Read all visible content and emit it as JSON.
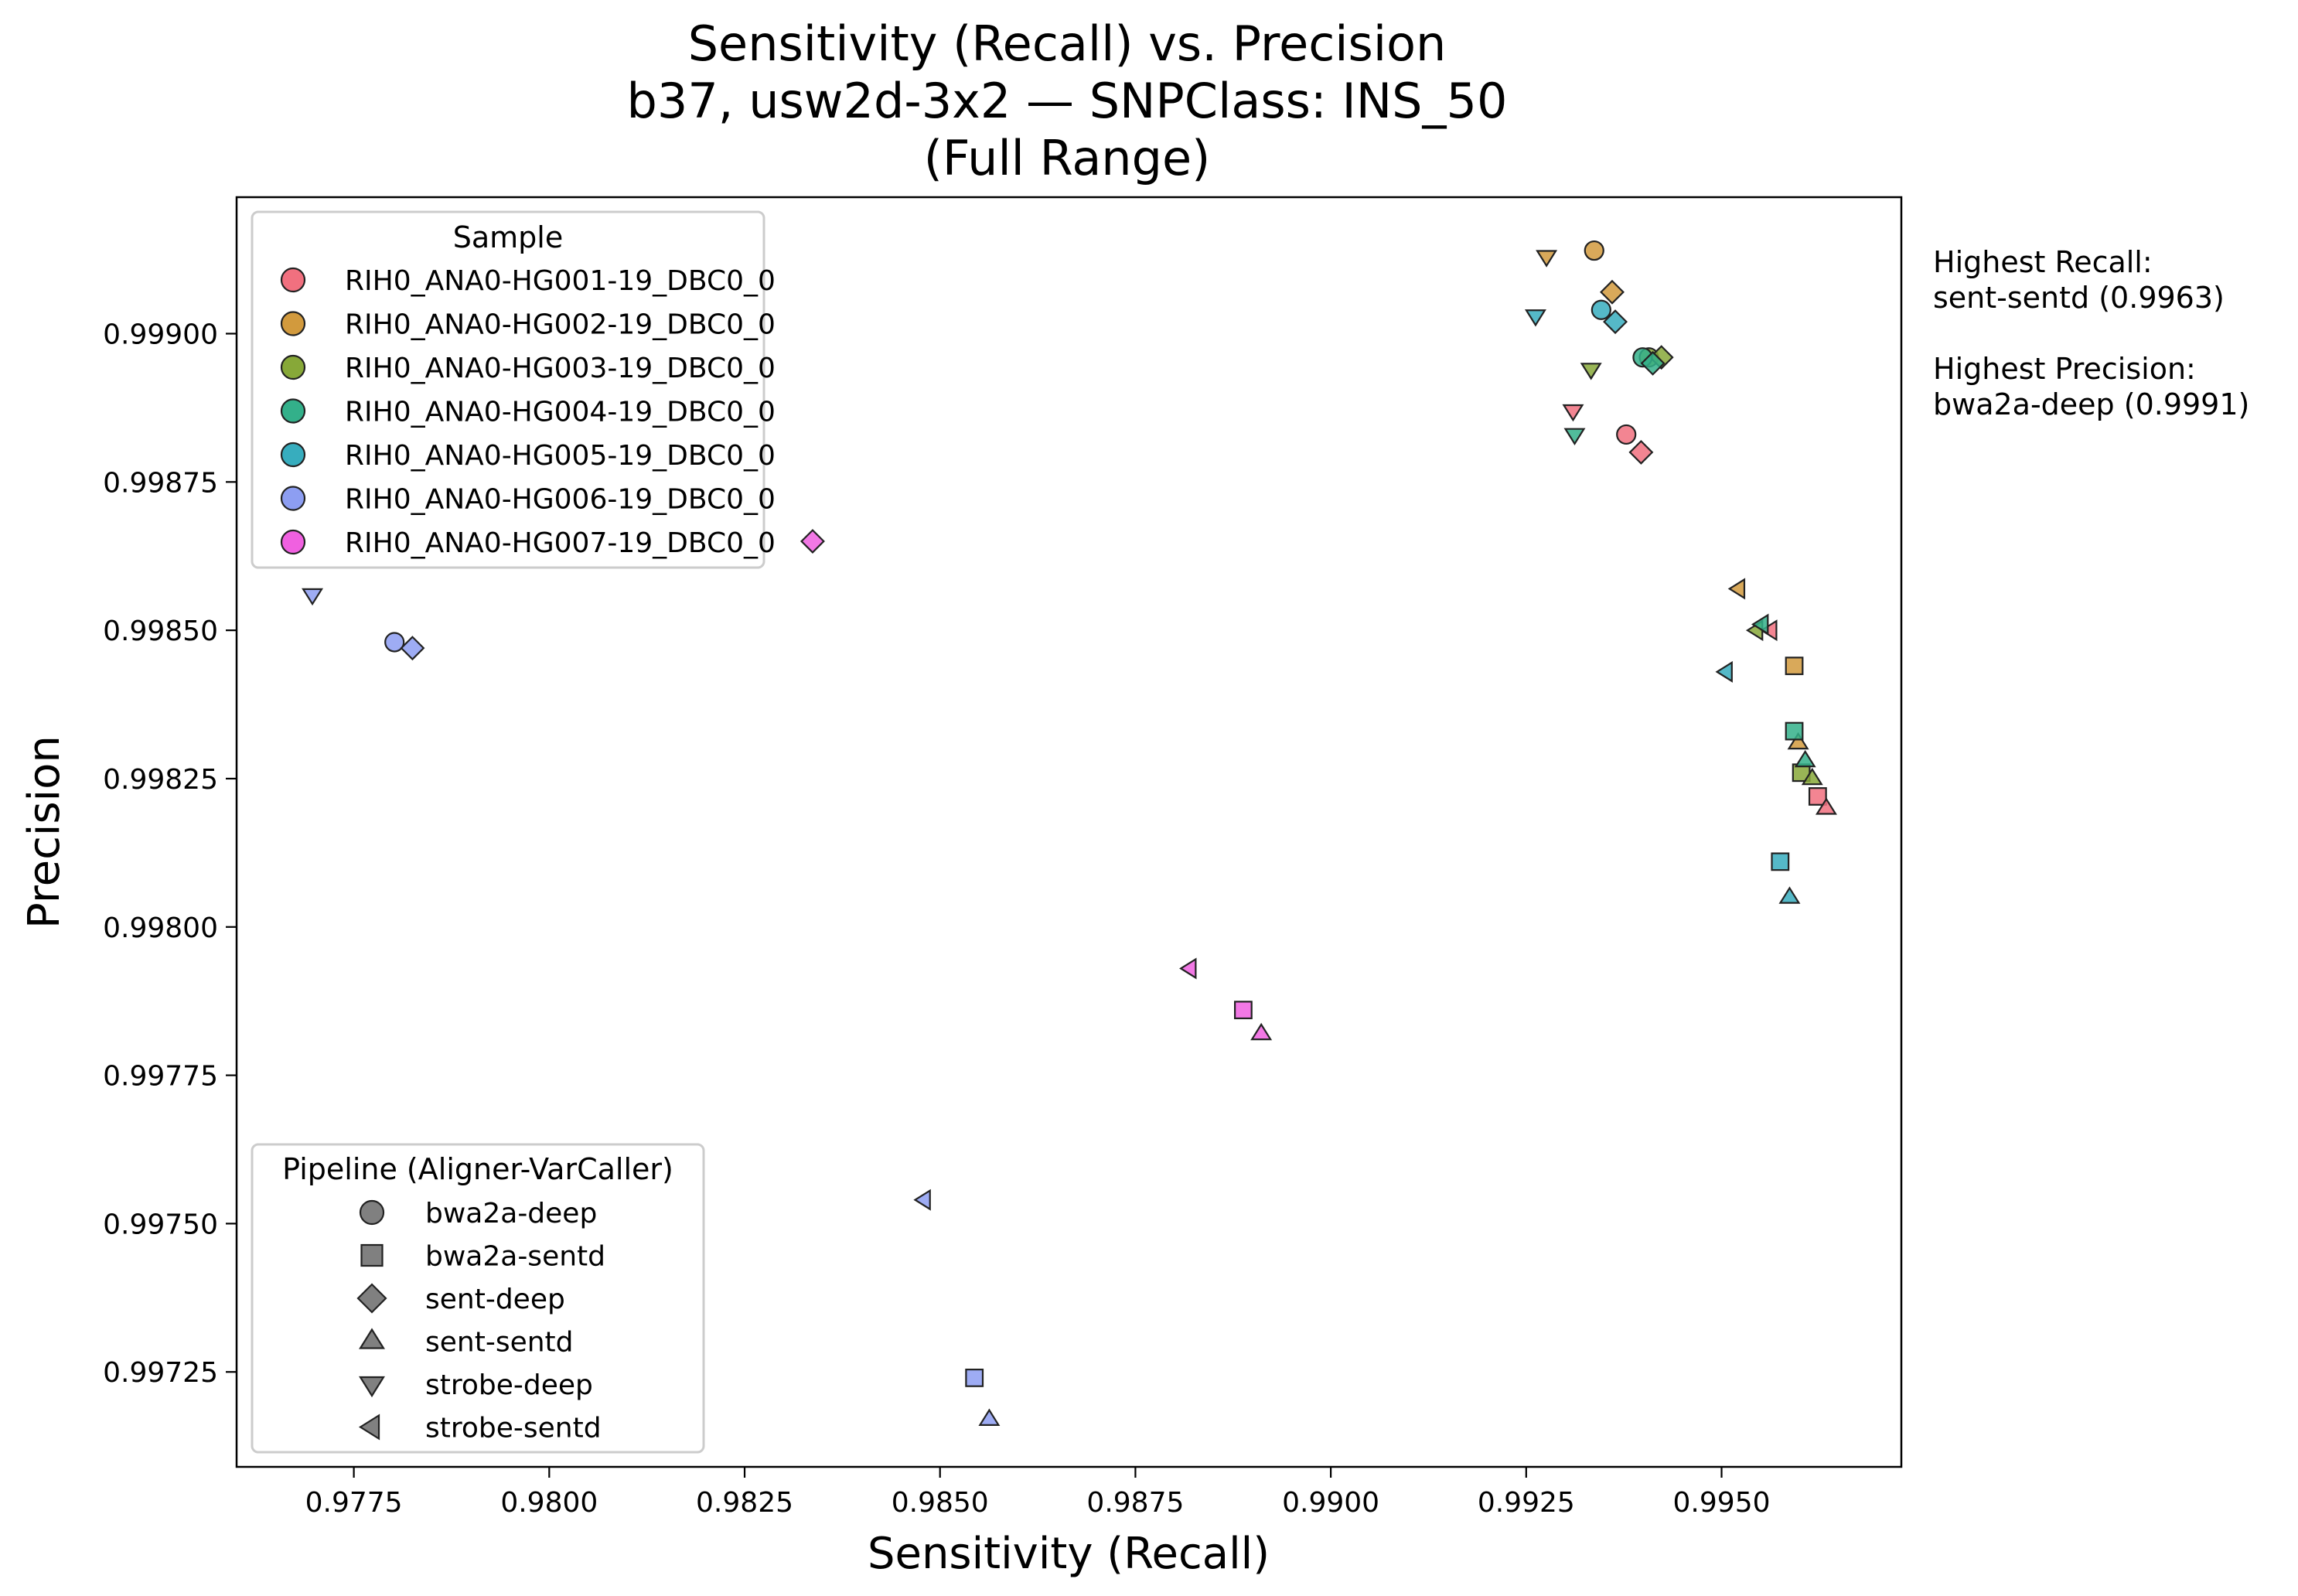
{
  "chart_data": {
    "type": "scatter",
    "title_lines": [
      "Sensitivity (Recall) vs. Precision",
      "b37, usw2d-3x2 — SNPClass: INS_50",
      "(Full Range)"
    ],
    "xlabel": "Sensitivity (Recall)",
    "ylabel": "Precision",
    "xlim": [
      0.976,
      0.9973
    ],
    "ylim": [
      0.99709,
      0.99923
    ],
    "xticks": [
      0.9775,
      0.98,
      0.9825,
      0.985,
      0.9875,
      0.99,
      0.9925,
      0.995
    ],
    "xtick_labels": [
      "0.9775",
      "0.9800",
      "0.9825",
      "0.9850",
      "0.9875",
      "0.9900",
      "0.9925",
      "0.9950"
    ],
    "yticks": [
      0.99725,
      0.9975,
      0.99775,
      0.998,
      0.99825,
      0.9985,
      0.99875,
      0.999
    ],
    "ytick_labels": [
      "0.99725",
      "0.99750",
      "0.99775",
      "0.99800",
      "0.99825",
      "0.99850",
      "0.99875",
      "0.99900"
    ],
    "grid": false,
    "samples": [
      {
        "name": "RIH0_ANA0-HG001-19_DBC0_0",
        "color": "#f1707f"
      },
      {
        "name": "RIH0_ANA0-HG002-19_DBC0_0",
        "color": "#d29a3d"
      },
      {
        "name": "RIH0_ANA0-HG003-19_DBC0_0",
        "color": "#87a838"
      },
      {
        "name": "RIH0_ANA0-HG004-19_DBC0_0",
        "color": "#33b08a"
      },
      {
        "name": "RIH0_ANA0-HG005-19_DBC0_0",
        "color": "#37adbe"
      },
      {
        "name": "RIH0_ANA0-HG006-19_DBC0_0",
        "color": "#8d9ef2"
      },
      {
        "name": "RIH0_ANA0-HG007-19_DBC0_0",
        "color": "#f060e0"
      }
    ],
    "pipelines": [
      {
        "name": "bwa2a-deep",
        "marker": "circle"
      },
      {
        "name": "bwa2a-sentd",
        "marker": "square"
      },
      {
        "name": "sent-deep",
        "marker": "diamond"
      },
      {
        "name": "sent-sentd",
        "marker": "triangle-up"
      },
      {
        "name": "strobe-deep",
        "marker": "triangle-down"
      },
      {
        "name": "strobe-sentd",
        "marker": "triangle-left"
      }
    ],
    "legend_sample_title": "Sample",
    "legend_pipeline_title": "Pipeline (Aligner-VarCaller)",
    "legend_sample_position": "top-left",
    "legend_pipeline_position": "bottom-left",
    "points": [
      {
        "sample": 0,
        "pipeline": 0,
        "x": 0.99378,
        "y": 0.99883
      },
      {
        "sample": 0,
        "pipeline": 1,
        "x": 0.99623,
        "y": 0.99822
      },
      {
        "sample": 0,
        "pipeline": 2,
        "x": 0.99397,
        "y": 0.9988
      },
      {
        "sample": 0,
        "pipeline": 3,
        "x": 0.99634,
        "y": 0.9982
      },
      {
        "sample": 0,
        "pipeline": 4,
        "x": 0.9931,
        "y": 0.99887
      },
      {
        "sample": 0,
        "pipeline": 5,
        "x": 0.99563,
        "y": 0.9985
      },
      {
        "sample": 1,
        "pipeline": 0,
        "x": 0.99337,
        "y": 0.99914
      },
      {
        "sample": 1,
        "pipeline": 1,
        "x": 0.99593,
        "y": 0.99844
      },
      {
        "sample": 1,
        "pipeline": 2,
        "x": 0.9936,
        "y": 0.99907
      },
      {
        "sample": 1,
        "pipeline": 3,
        "x": 0.99598,
        "y": 0.99831
      },
      {
        "sample": 1,
        "pipeline": 4,
        "x": 0.99276,
        "y": 0.99913
      },
      {
        "sample": 1,
        "pipeline": 5,
        "x": 0.99522,
        "y": 0.99857
      },
      {
        "sample": 2,
        "pipeline": 0,
        "x": 0.99407,
        "y": 0.99896
      },
      {
        "sample": 2,
        "pipeline": 1,
        "x": 0.99602,
        "y": 0.99826
      },
      {
        "sample": 2,
        "pipeline": 2,
        "x": 0.99423,
        "y": 0.99896
      },
      {
        "sample": 2,
        "pipeline": 3,
        "x": 0.99616,
        "y": 0.99825
      },
      {
        "sample": 2,
        "pipeline": 4,
        "x": 0.99333,
        "y": 0.99894
      },
      {
        "sample": 2,
        "pipeline": 5,
        "x": 0.99545,
        "y": 0.9985
      },
      {
        "sample": 3,
        "pipeline": 0,
        "x": 0.99399,
        "y": 0.99896
      },
      {
        "sample": 3,
        "pipeline": 1,
        "x": 0.99593,
        "y": 0.99833
      },
      {
        "sample": 3,
        "pipeline": 2,
        "x": 0.99412,
        "y": 0.99895
      },
      {
        "sample": 3,
        "pipeline": 3,
        "x": 0.99607,
        "y": 0.99828
      },
      {
        "sample": 3,
        "pipeline": 4,
        "x": 0.99312,
        "y": 0.99883
      },
      {
        "sample": 3,
        "pipeline": 5,
        "x": 0.99552,
        "y": 0.99851
      },
      {
        "sample": 4,
        "pipeline": 0,
        "x": 0.99346,
        "y": 0.99904
      },
      {
        "sample": 4,
        "pipeline": 1,
        "x": 0.99575,
        "y": 0.99811
      },
      {
        "sample": 4,
        "pipeline": 2,
        "x": 0.99364,
        "y": 0.99902
      },
      {
        "sample": 4,
        "pipeline": 3,
        "x": 0.99587,
        "y": 0.99805
      },
      {
        "sample": 4,
        "pipeline": 4,
        "x": 0.99262,
        "y": 0.99903
      },
      {
        "sample": 4,
        "pipeline": 5,
        "x": 0.99506,
        "y": 0.99843
      },
      {
        "sample": 5,
        "pipeline": 0,
        "x": 0.97802,
        "y": 0.99848
      },
      {
        "sample": 5,
        "pipeline": 1,
        "x": 0.98544,
        "y": 0.99724
      },
      {
        "sample": 5,
        "pipeline": 2,
        "x": 0.97825,
        "y": 0.99847
      },
      {
        "sample": 5,
        "pipeline": 3,
        "x": 0.98563,
        "y": 0.99717
      },
      {
        "sample": 5,
        "pipeline": 4,
        "x": 0.97697,
        "y": 0.99856
      },
      {
        "sample": 5,
        "pipeline": 5,
        "x": 0.9848,
        "y": 0.99754
      },
      {
        "sample": 6,
        "pipeline": 1,
        "x": 0.98888,
        "y": 0.99786
      },
      {
        "sample": 6,
        "pipeline": 2,
        "x": 0.98337,
        "y": 0.99865
      },
      {
        "sample": 6,
        "pipeline": 3,
        "x": 0.98911,
        "y": 0.99782
      },
      {
        "sample": 6,
        "pipeline": 5,
        "x": 0.9882,
        "y": 0.99793
      }
    ],
    "annotations": [
      "Highest Recall:",
      "sent-sentd (0.9963)",
      "Highest Precision:",
      "bwa2a-deep (0.9991)"
    ]
  }
}
